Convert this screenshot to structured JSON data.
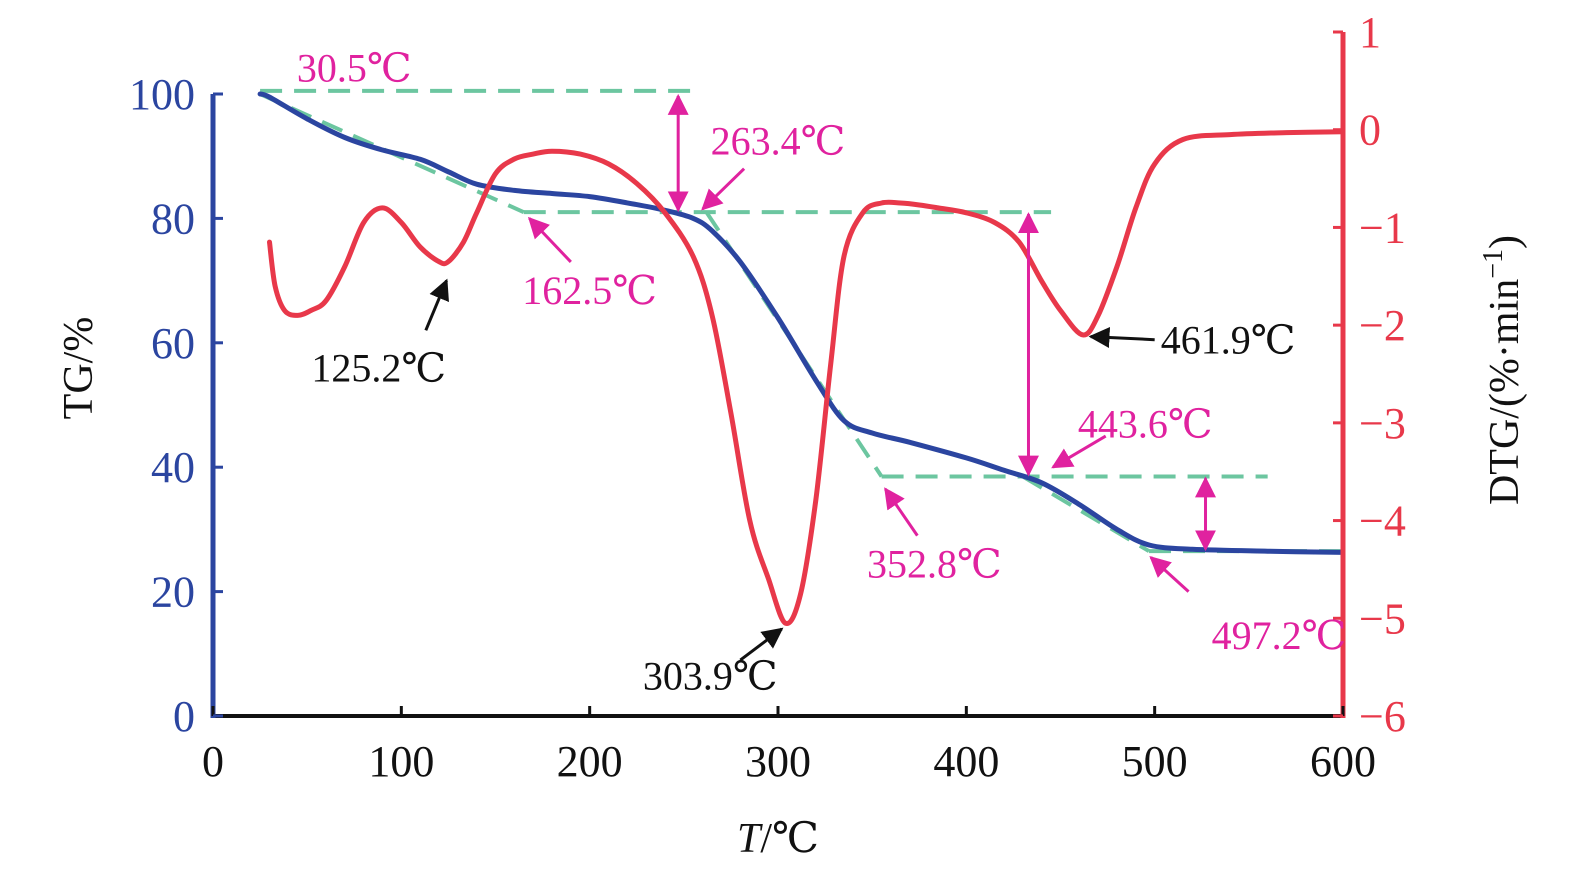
{
  "chart_data": {
    "type": "line",
    "title": "",
    "xlabel_italic": "T",
    "xlabel_rest": "/℃",
    "xlim": [
      0,
      600
    ],
    "x_ticks": [
      "0",
      "100",
      "200",
      "300",
      "400",
      "500",
      "600"
    ],
    "y_left": {
      "label": "TG/%",
      "lim": [
        0,
        100
      ],
      "ticks": [
        "0",
        "20",
        "40",
        "60",
        "80",
        "100"
      ],
      "color": "#2b45a0"
    },
    "y_right": {
      "label_main": "DTG/(%·min",
      "label_sup": "−1",
      "label_close": ")",
      "lim": [
        -6,
        1
      ],
      "ticks": [
        "−6",
        "−5",
        "−4",
        "−3",
        "−2",
        "−1",
        "0",
        "1"
      ],
      "color": "#e8384a"
    },
    "series": [
      {
        "name": "TG",
        "axis": "left",
        "color": "#2b45a0",
        "x": [
          25,
          30,
          50,
          70,
          90,
          110,
          125,
          140,
          160,
          180,
          200,
          220,
          240,
          255,
          265,
          280,
          300,
          320,
          335,
          350,
          370,
          400,
          420,
          440,
          460,
          480,
          497,
          520,
          560,
          600
        ],
        "y": [
          100,
          99.5,
          96,
          93,
          91,
          89.5,
          87.5,
          85.5,
          84.5,
          84,
          83.5,
          82.5,
          81.3,
          80,
          78,
          73,
          64,
          54,
          47.5,
          45.5,
          44,
          41.5,
          39.5,
          37.5,
          34,
          30,
          27.5,
          26.8,
          26.5,
          26.3
        ]
      },
      {
        "name": "DTG",
        "axis": "right",
        "color": "#e8384a",
        "x": [
          30,
          33,
          38,
          45,
          52,
          60,
          70,
          80,
          90,
          100,
          110,
          120,
          125,
          133,
          140,
          150,
          160,
          170,
          180,
          195,
          210,
          225,
          240,
          255,
          265,
          275,
          285,
          295,
          304,
          312,
          320,
          328,
          335,
          345,
          355,
          365,
          375,
          385,
          400,
          415,
          428,
          440,
          450,
          461.9,
          470,
          480,
          490,
          500,
          515,
          540,
          570,
          600
        ],
        "y": [
          -1.15,
          -1.6,
          -1.85,
          -1.9,
          -1.85,
          -1.75,
          -1.4,
          -0.95,
          -0.8,
          -0.95,
          -1.2,
          -1.35,
          -1.35,
          -1.15,
          -0.85,
          -0.45,
          -0.3,
          -0.25,
          -0.22,
          -0.25,
          -0.35,
          -0.55,
          -0.85,
          -1.3,
          -1.9,
          -2.9,
          -4.0,
          -4.6,
          -5.05,
          -4.75,
          -3.8,
          -2.4,
          -1.3,
          -0.85,
          -0.75,
          -0.75,
          -0.77,
          -0.8,
          -0.85,
          -0.95,
          -1.15,
          -1.55,
          -1.85,
          -2.1,
          -1.9,
          -1.4,
          -0.8,
          -0.35,
          -0.1,
          -0.05,
          -0.03,
          -0.02
        ]
      }
    ],
    "baselines": [
      {
        "x1": 25,
        "x2": 258,
        "y": 100.5
      },
      {
        "x1": 165,
        "x2": 445,
        "y": 81
      },
      {
        "x1": 355,
        "x2": 560,
        "y": 38.5
      },
      {
        "x1": 497,
        "x2": 600,
        "y": 26.5
      }
    ],
    "tangent_lines": [
      {
        "x": [
          25,
          165
        ],
        "y": [
          100,
          81
        ]
      },
      {
        "x": [
          262,
          355
        ],
        "y": [
          81,
          38.5
        ]
      },
      {
        "x": [
          430,
          497
        ],
        "y": [
          38.5,
          26.5
        ]
      }
    ],
    "mass_loss_arrows": [
      {
        "x": 247,
        "y1": 100,
        "y2": 81
      },
      {
        "x": 433,
        "y1": 81,
        "y2": 38.5
      },
      {
        "x": 527,
        "y1": 38.5,
        "y2": 26.5
      }
    ],
    "annotations": [
      {
        "text": "30.5℃",
        "color": "#e0229f",
        "label": [
          75,
          104.3
        ],
        "arrow": null
      },
      {
        "text": "263.4℃",
        "color": "#e0229f",
        "label": [
          300,
          92.5
        ],
        "arrow": {
          "from": [
            282,
            88
          ],
          "to": [
            260,
            81.5
          ]
        }
      },
      {
        "text": "162.5℃",
        "color": "#e0229f",
        "label": [
          200,
          68.5
        ],
        "arrow": {
          "from": [
            190,
            73
          ],
          "to": [
            168,
            80
          ]
        }
      },
      {
        "text": "125.2℃",
        "color": "#111111",
        "label": [
          88,
          56
        ],
        "arrow": {
          "from": [
            113,
            62
          ],
          "to": [
            124,
            70
          ]
        }
      },
      {
        "text": "303.9℃",
        "color": "#111111",
        "label": [
          264,
          6.5
        ],
        "arrow": {
          "from": [
            280,
            9
          ],
          "to": [
            302,
            14
          ]
        }
      },
      {
        "text": "352.8℃",
        "color": "#e0229f",
        "label": [
          383,
          24.5
        ],
        "arrow": {
          "from": [
            374,
            29
          ],
          "to": [
            357,
            36.5
          ]
        }
      },
      {
        "text": "443.6℃",
        "color": "#e0229f",
        "label": [
          495,
          47
        ],
        "arrow": {
          "from": [
            474,
            45
          ],
          "to": [
            446,
            40
          ]
        }
      },
      {
        "text": "461.9℃",
        "color": "#111111",
        "label": [
          539,
          60.5
        ],
        "arrow": {
          "from": [
            500,
            60.5
          ],
          "to": [
            466,
            61
          ]
        }
      },
      {
        "text": "497.2℃",
        "color": "#e0229f",
        "label": [
          566,
          13
        ],
        "arrow": {
          "from": [
            518,
            20
          ],
          "to": [
            498,
            25.5
          ]
        }
      }
    ]
  }
}
